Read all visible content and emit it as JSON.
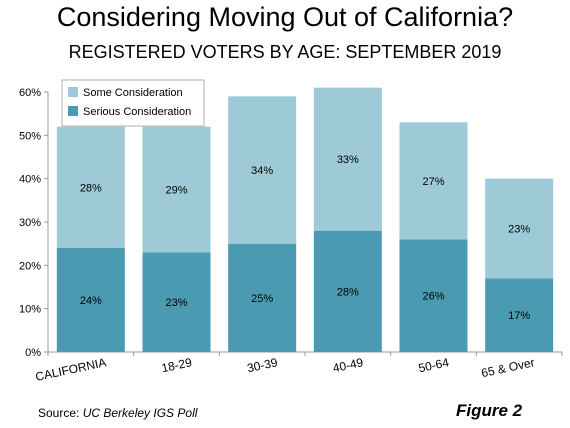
{
  "title": "Considering Moving Out of California?",
  "subtitle": "REGISTERED VOTERS BY AGE: SEPTEMBER 2019",
  "source_prefix": "Source: ",
  "source_name": "UC Berkeley IGS Poll",
  "figure_label": "Figure 2",
  "colors": {
    "serious": "#4a9bb1",
    "some": "#9ecad7",
    "axis": "#999999"
  },
  "chart_data": {
    "type": "bar",
    "stacked": true,
    "categories": [
      "CALIFORNIA",
      "18-29",
      "30-39",
      "40-49",
      "50-64",
      "65 & Over"
    ],
    "series": [
      {
        "name": "Serious Consideration",
        "values": [
          24,
          23,
          25,
          28,
          26,
          17
        ],
        "labels": [
          "24%",
          "23%",
          "25%",
          "28%",
          "26%",
          "17%"
        ]
      },
      {
        "name": "Some Consideration",
        "values": [
          28,
          29,
          34,
          33,
          27,
          23
        ],
        "labels": [
          "28%",
          "29%",
          "34%",
          "33%",
          "27%",
          "23%"
        ]
      }
    ],
    "ylim": [
      0,
      60
    ],
    "yticks": [
      0,
      10,
      20,
      30,
      40,
      50,
      60
    ],
    "ytick_labels": [
      "0%",
      "10%",
      "20%",
      "30%",
      "40%",
      "50%",
      "60%"
    ],
    "grid": false,
    "legend_position": "top-left"
  }
}
